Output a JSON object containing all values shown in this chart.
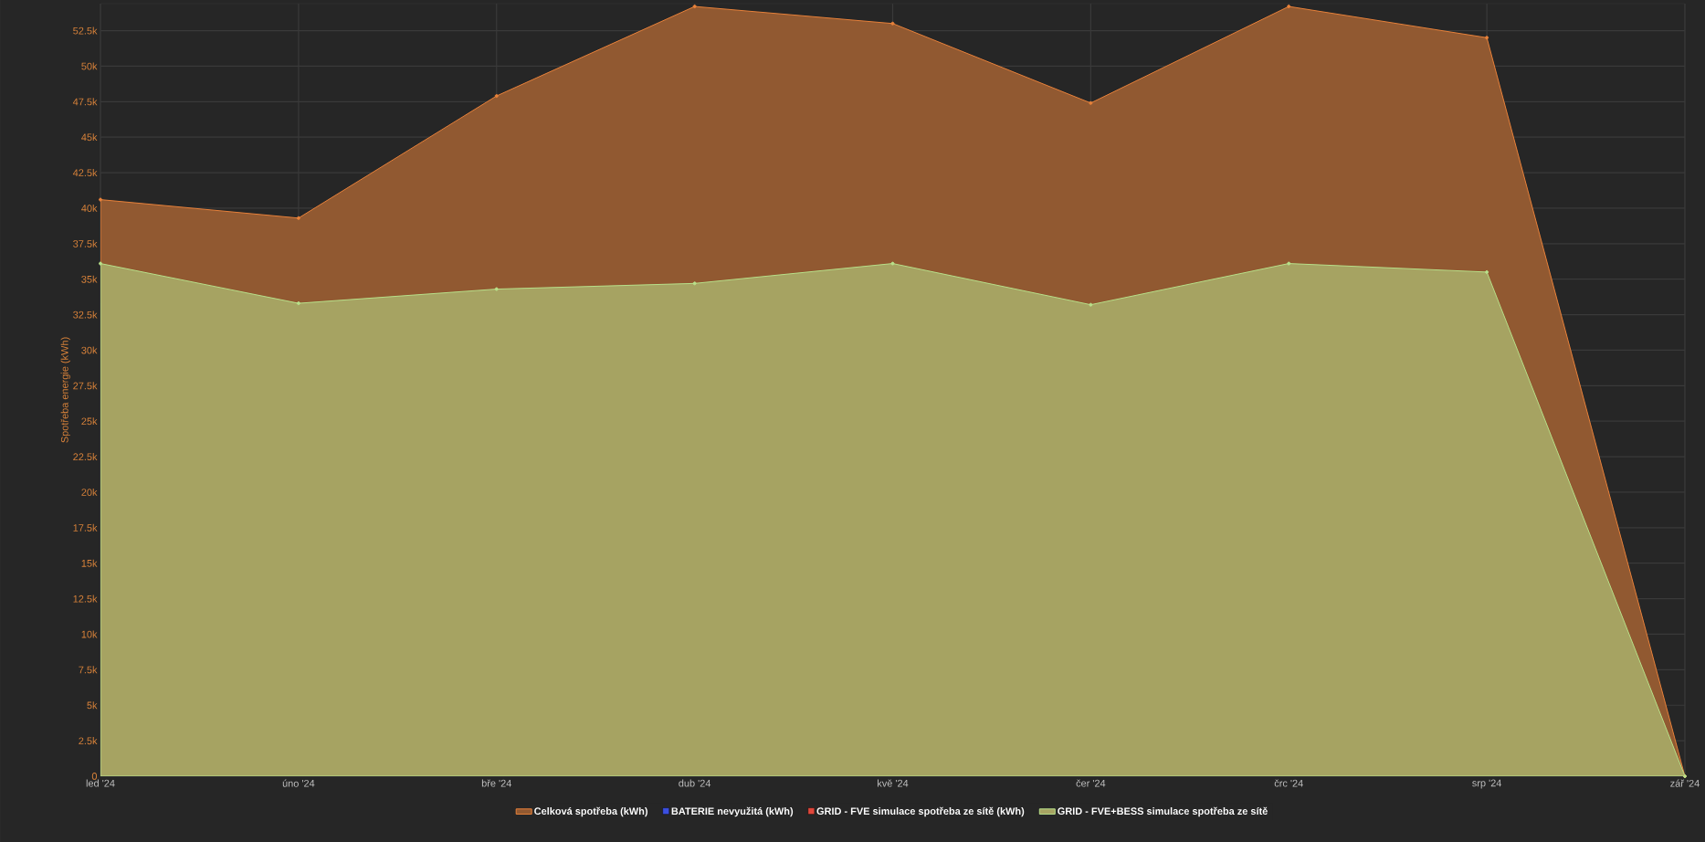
{
  "chart_data": {
    "type": "area",
    "ylabel": "Spotřeba energie (kWh)",
    "categories": [
      "led '24",
      "úno '24",
      "bře '24",
      "dub '24",
      "kvě '24",
      "čer '24",
      "črc '24",
      "srp '24",
      "zář '24"
    ],
    "series": [
      {
        "name": "Celková spotřeba (kWh)",
        "color": "#e8823a",
        "values": [
          40600,
          39300,
          47900,
          54200,
          53000,
          47400,
          54200,
          52000,
          0
        ]
      },
      {
        "name": "BATERIE nevyužitá (kWh)",
        "color": "#3b4fe0",
        "values": [
          null,
          null,
          null,
          null,
          null,
          null,
          null,
          null,
          null
        ]
      },
      {
        "name": "GRID - FVE simulace spotřeba ze sítě (kWh)",
        "color": "#e0473b",
        "values": [
          null,
          null,
          null,
          null,
          null,
          null,
          null,
          null,
          null
        ]
      },
      {
        "name": "GRID - FVE+BESS simulace spotřeba ze sítě",
        "color": "#b8e08a",
        "values": [
          36100,
          33300,
          34300,
          34700,
          36100,
          33200,
          36100,
          35500,
          0
        ]
      }
    ],
    "ylim": [
      0,
      54400
    ],
    "yticks": [
      0,
      {
        "value": 2500,
        "label": "2.5k"
      },
      {
        "value": 5000,
        "label": "5k"
      },
      {
        "value": 7500,
        "label": "7.5k"
      },
      {
        "value": 10000,
        "label": "10k"
      },
      {
        "value": 12500,
        "label": "12.5k"
      },
      {
        "value": 15000,
        "label": "15k"
      },
      {
        "value": 17500,
        "label": "17.5k"
      },
      {
        "value": 20000,
        "label": "20k"
      },
      {
        "value": 22500,
        "label": "22.5k"
      },
      {
        "value": 25000,
        "label": "25k"
      },
      {
        "value": 27500,
        "label": "27.5k"
      },
      {
        "value": 30000,
        "label": "30k"
      },
      {
        "value": 32500,
        "label": "32.5k"
      },
      {
        "value": 35000,
        "label": "35k"
      },
      {
        "value": 37500,
        "label": "37.5k"
      },
      {
        "value": 40000,
        "label": "40k"
      },
      {
        "value": 42500,
        "label": "42.5k"
      },
      {
        "value": 45000,
        "label": "45k"
      },
      {
        "value": 47500,
        "label": "47.5k"
      },
      {
        "value": 50000,
        "label": "50k"
      },
      {
        "value": 52500,
        "label": "52.5k"
      }
    ],
    "grid": true,
    "legend": "bottom",
    "marker": "circle",
    "line_style": "solid"
  }
}
